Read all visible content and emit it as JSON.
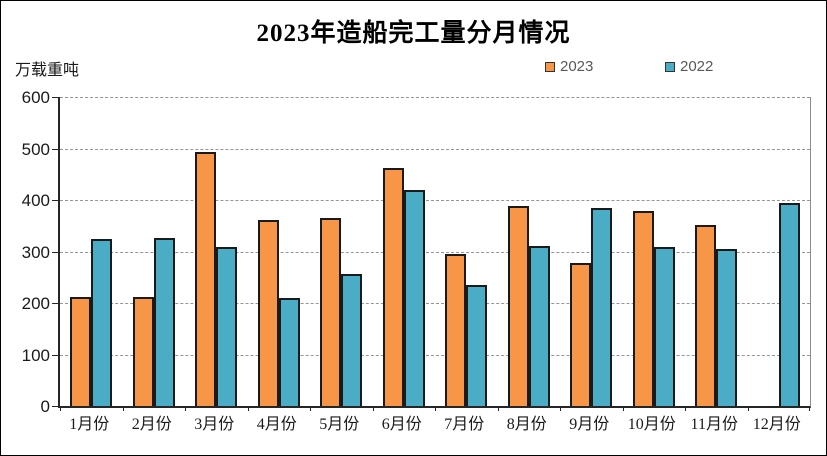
{
  "chart_data": {
    "type": "bar",
    "title": "2023年造船完工量分月情况",
    "unit_label": "万载重吨",
    "categories": [
      "1月份",
      "2月份",
      "3月份",
      "4月份",
      "5月份",
      "6月份",
      "7月份",
      "8月份",
      "9月份",
      "10月份",
      "11月份",
      "12月份"
    ],
    "series": [
      {
        "name": "2023",
        "color": "#F79646",
        "values": [
          211,
          212,
          493,
          361,
          366,
          462,
          296,
          388,
          277,
          378,
          352,
          null
        ]
      },
      {
        "name": "2022",
        "color": "#4BACC6",
        "values": [
          325,
          327,
          308,
          210,
          257,
          420,
          235,
          310,
          385,
          308,
          304,
          395
        ]
      }
    ],
    "ylim": [
      0,
      600
    ],
    "ytick_interval": 100,
    "yticks": [
      "0",
      "100",
      "200",
      "300",
      "400",
      "500",
      "600"
    ],
    "grid": "horizontal-dashed",
    "legend_position": "top-right",
    "bar_border_color": "#1a1a1a"
  }
}
